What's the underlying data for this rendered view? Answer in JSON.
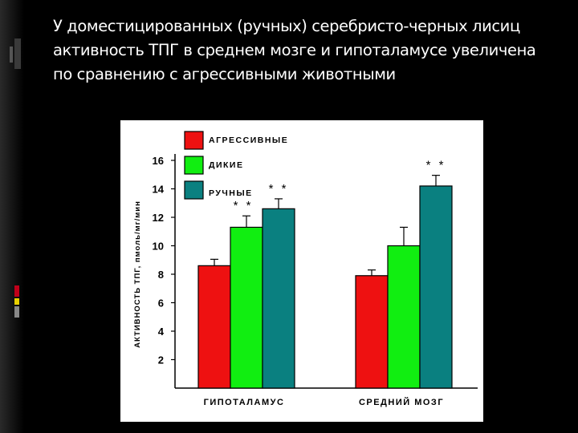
{
  "slide": {
    "title": "У доместицированных (ручных) серебристо-черных лисиц активность ТПГ в среднем мозге и гипоталамусе увеличена по сравнению с агрессивными животными"
  },
  "colors": {
    "background": "#000000",
    "accent_dark": "#3a3a3a",
    "accent_red": "#c0001a",
    "accent_yellow": "#e8d000"
  },
  "chart_data": {
    "type": "bar",
    "categories": [
      "ГИПОТАЛАМУС",
      "СРЕДНИЙ МОЗГ"
    ],
    "ylabel": "АКТИВНОСТЬ ТПГ, пмоль/мг/мин",
    "ylim": [
      0,
      16
    ],
    "yticks": [
      2,
      4,
      6,
      8,
      10,
      12,
      14,
      16
    ],
    "grid": false,
    "legend_position": "top-left",
    "series": [
      {
        "name": "АГРЕССИВНЫЕ",
        "color": "#ee1111",
        "values": [
          8.6,
          7.9
        ],
        "errors": [
          0.45,
          0.4
        ],
        "significance": [
          "",
          ""
        ]
      },
      {
        "name": "ДИКИЕ",
        "color": "#11ee11",
        "values": [
          11.3,
          10.0
        ],
        "errors": [
          0.8,
          1.3
        ],
        "significance": [
          "* *",
          ""
        ]
      },
      {
        "name": "РУЧНЫЕ",
        "color": "#0a8080",
        "values": [
          12.6,
          14.2
        ],
        "errors": [
          0.7,
          0.75
        ],
        "significance": [
          "* *",
          "* *"
        ]
      }
    ]
  }
}
